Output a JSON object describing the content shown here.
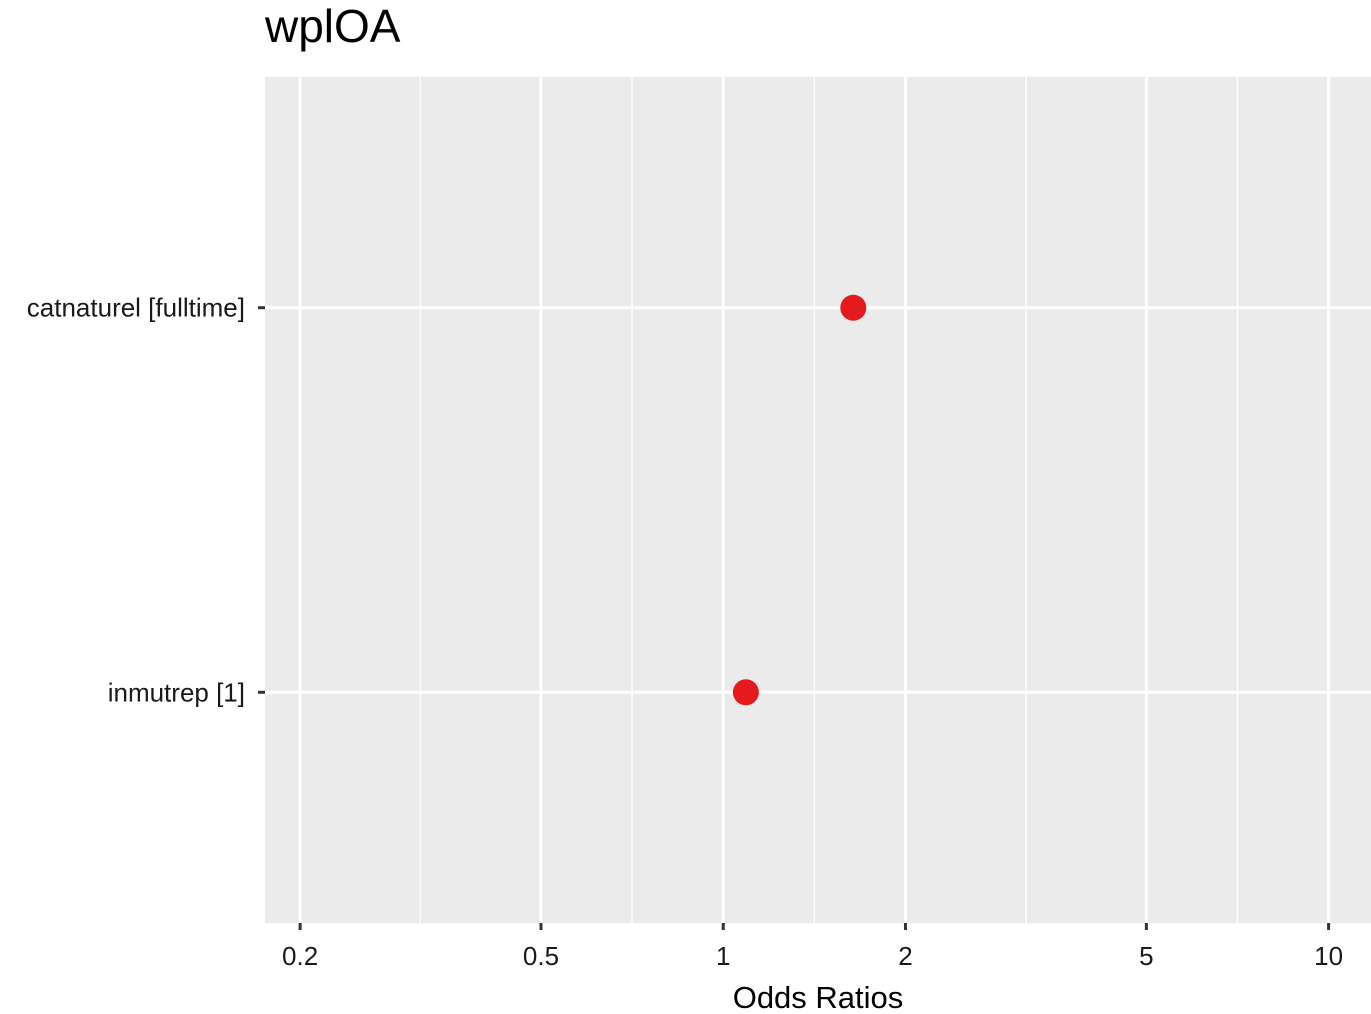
{
  "chart_data": {
    "type": "scatter",
    "title": "wplOA",
    "xlabel": "Odds Ratios",
    "ylabel": "",
    "x_scale": "log",
    "xlim": [
      0.175,
      11.75
    ],
    "x_ticks": [
      {
        "value": 0.2,
        "label": "0.2"
      },
      {
        "value": 0.5,
        "label": "0.5"
      },
      {
        "value": 1,
        "label": "1"
      },
      {
        "value": 2,
        "label": "2"
      },
      {
        "value": 5,
        "label": "5"
      },
      {
        "value": 10,
        "label": "10"
      }
    ],
    "x_minor_ticks": [
      0.316,
      0.707,
      1.414,
      3.162,
      7.071
    ],
    "categories": [
      "catnaturel [fulltime]",
      "inmutrep [1]"
    ],
    "points": [
      {
        "term": "catnaturel [fulltime]",
        "estimate": 1.64
      },
      {
        "term": "inmutrep [1]",
        "estimate": 1.09
      }
    ],
    "grid": true,
    "legend": "none",
    "colors": {
      "panel": "#ebebeb",
      "grid": "#ffffff",
      "point": "#e41a1c",
      "tick": "#333333"
    }
  }
}
